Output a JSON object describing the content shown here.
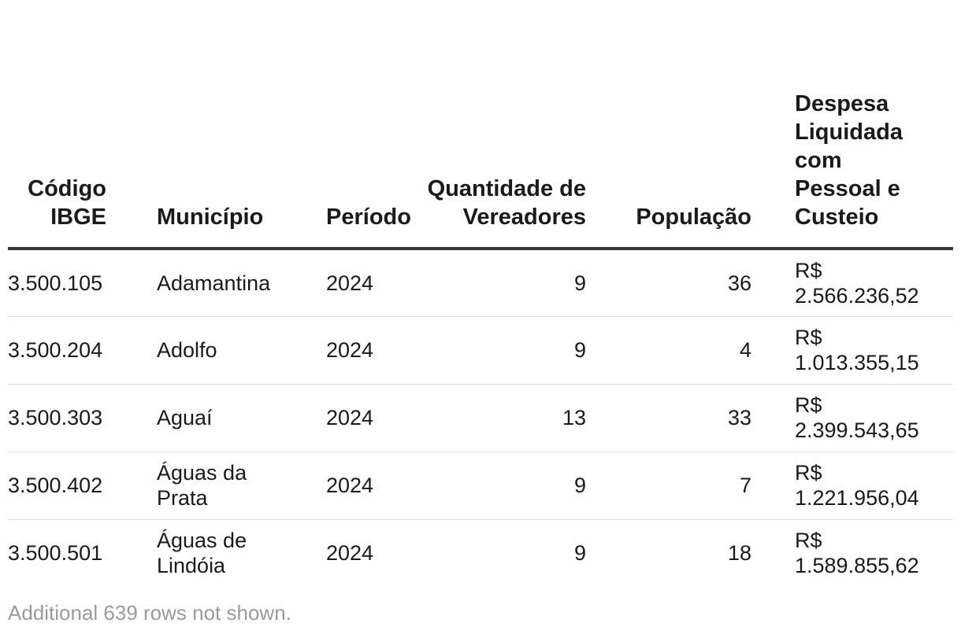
{
  "table": {
    "headers": [
      "Código IBGE",
      "Município",
      "Período",
      "Quantidade de Vereadores",
      "População",
      "Despesa Liquidada com Pessoal e Custeio"
    ],
    "rows": [
      {
        "codigo": "3.500.105",
        "municipio": "Adamantina",
        "periodo": "2024",
        "vereadores": "9",
        "populacao": "36",
        "despesa": "R$ 2.566.236,52"
      },
      {
        "codigo": "3.500.204",
        "municipio": "Adolfo",
        "periodo": "2024",
        "vereadores": "9",
        "populacao": "4",
        "despesa": "R$ 1.013.355,15"
      },
      {
        "codigo": "3.500.303",
        "municipio": "Aguaí",
        "periodo": "2024",
        "vereadores": "13",
        "populacao": "33",
        "despesa": "R$ 2.399.543,65"
      },
      {
        "codigo": "3.500.402",
        "municipio": "Águas da Prata",
        "periodo": "2024",
        "vereadores": "9",
        "populacao": "7",
        "despesa": "R$ 1.221.956,04"
      },
      {
        "codigo": "3.500.501",
        "municipio": "Águas de Lindóia",
        "periodo": "2024",
        "vereadores": "9",
        "populacao": "18",
        "despesa": "R$ 1.589.855,62"
      }
    ]
  },
  "footer": {
    "note": "Additional 639 rows not shown."
  }
}
